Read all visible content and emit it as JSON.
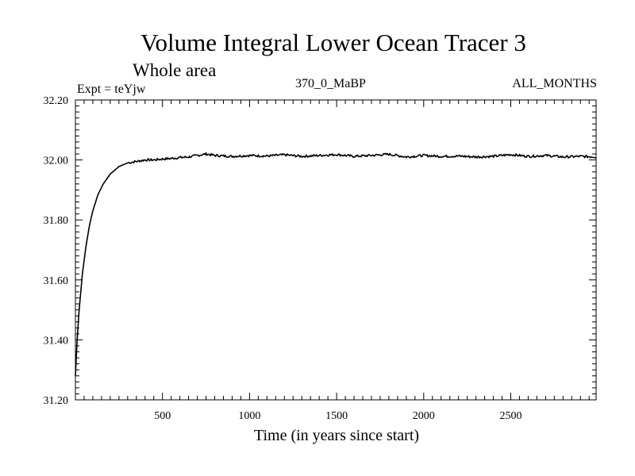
{
  "chart_data": {
    "type": "line",
    "title": "Volume Integral Lower Ocean Tracer 3",
    "subtitle": "Whole area",
    "expt_label": "Expt = teYjw",
    "period_label": "370_0_MaBP",
    "months_label": "ALL_MONTHS",
    "xlabel": "Time (in years since start)",
    "ylabel": "",
    "xlim": [
      0,
      2990
    ],
    "ylim": [
      31.2,
      32.2
    ],
    "x_ticks": [
      500,
      1000,
      1500,
      2000,
      2500
    ],
    "x_tick_labels": [
      "500",
      "1000",
      "1500",
      "2000",
      "2500"
    ],
    "y_ticks": [
      31.2,
      31.4,
      31.6,
      31.8,
      32.0,
      32.2
    ],
    "y_tick_labels": [
      "31.20",
      "31.40",
      "31.60",
      "31.80",
      "32.00",
      "32.20"
    ],
    "grid": false,
    "series": [
      {
        "name": "Lower Ocean Tracer 3",
        "color": "#000000",
        "x": [
          0,
          10,
          20,
          40,
          60,
          80,
          100,
          130,
          160,
          200,
          250,
          300,
          350,
          400,
          450,
          500,
          550,
          600,
          650,
          700,
          750,
          800,
          900,
          1000,
          1100,
          1200,
          1300,
          1400,
          1500,
          1600,
          1700,
          1800,
          1900,
          2000,
          2100,
          2200,
          2300,
          2400,
          2500,
          2600,
          2700,
          2800,
          2900,
          2990
        ],
        "values": [
          31.28,
          31.4,
          31.49,
          31.62,
          31.71,
          31.78,
          31.83,
          31.885,
          31.92,
          31.953,
          31.978,
          31.99,
          31.995,
          32.0,
          32.0,
          32.003,
          32.005,
          32.008,
          32.01,
          32.015,
          32.02,
          32.015,
          32.012,
          32.015,
          32.013,
          32.017,
          32.012,
          32.015,
          32.018,
          32.012,
          32.015,
          32.019,
          32.01,
          32.015,
          32.012,
          32.013,
          32.01,
          32.012,
          32.018,
          32.012,
          32.015,
          32.01,
          32.012,
          32.01
        ]
      }
    ]
  }
}
